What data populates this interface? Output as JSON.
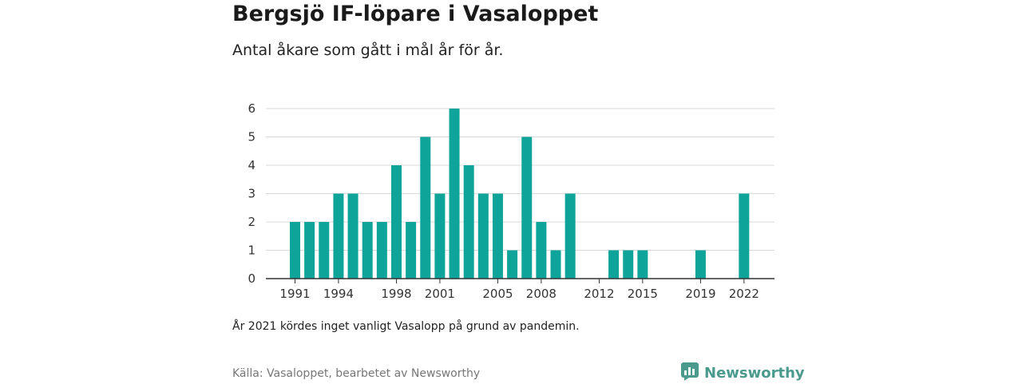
{
  "header": {
    "title": "Bergsjö IF-löpare i Vasaloppet",
    "subtitle": "Antal åkare som gått i mål år för år."
  },
  "footer": {
    "note": "År 2021 kördes inget vanligt Vasalopp på grund av pandemin.",
    "source": "Källa: Vasaloppet, bearbetet av Newsworthy",
    "brand": "Newsworthy"
  },
  "colors": {
    "bar": "#0fa499",
    "grid": "#d9d9d9",
    "axis": "#333333",
    "brand": "#4a9a8e"
  },
  "chart_data": {
    "type": "bar",
    "title": "Bergsjö IF-löpare i Vasaloppet",
    "subtitle": "Antal åkare som gått i mål år för år.",
    "xlabel": "",
    "ylabel": "",
    "ylim": [
      0,
      6
    ],
    "yticks": [
      0,
      1,
      2,
      3,
      4,
      5,
      6
    ],
    "xticks": [
      1991,
      1994,
      1998,
      2001,
      2005,
      2008,
      2012,
      2015,
      2019,
      2022
    ],
    "grid": true,
    "categories": [
      1991,
      1992,
      1993,
      1994,
      1995,
      1996,
      1997,
      1998,
      1999,
      2000,
      2001,
      2002,
      2003,
      2004,
      2005,
      2006,
      2007,
      2008,
      2009,
      2010,
      2011,
      2012,
      2013,
      2014,
      2015,
      2016,
      2017,
      2018,
      2019,
      2020,
      2021,
      2022
    ],
    "values": [
      2,
      2,
      2,
      3,
      3,
      2,
      2,
      4,
      2,
      5,
      3,
      6,
      4,
      3,
      3,
      1,
      5,
      2,
      1,
      3,
      0,
      0,
      1,
      1,
      1,
      0,
      0,
      0,
      1,
      0,
      0,
      3
    ]
  }
}
